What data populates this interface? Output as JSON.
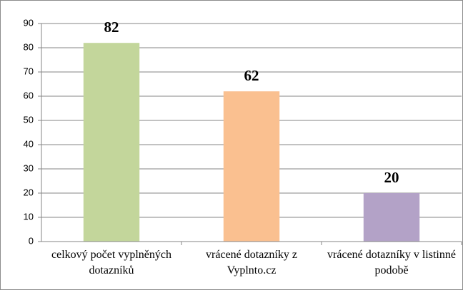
{
  "chart_data": {
    "type": "bar",
    "categories": [
      "celkový počet vyplněných dotazníků",
      "vrácené dotazníky z Vyplnto.cz",
      "vrácené dotazníky v listinné podobě"
    ],
    "values": [
      82,
      62,
      20
    ],
    "colors": [
      "#c3d69b",
      "#fac090",
      "#b3a2c7"
    ],
    "ylim": [
      0,
      90
    ],
    "yticks": [
      0,
      10,
      20,
      30,
      40,
      50,
      60,
      70,
      80,
      90
    ],
    "grid": true
  }
}
